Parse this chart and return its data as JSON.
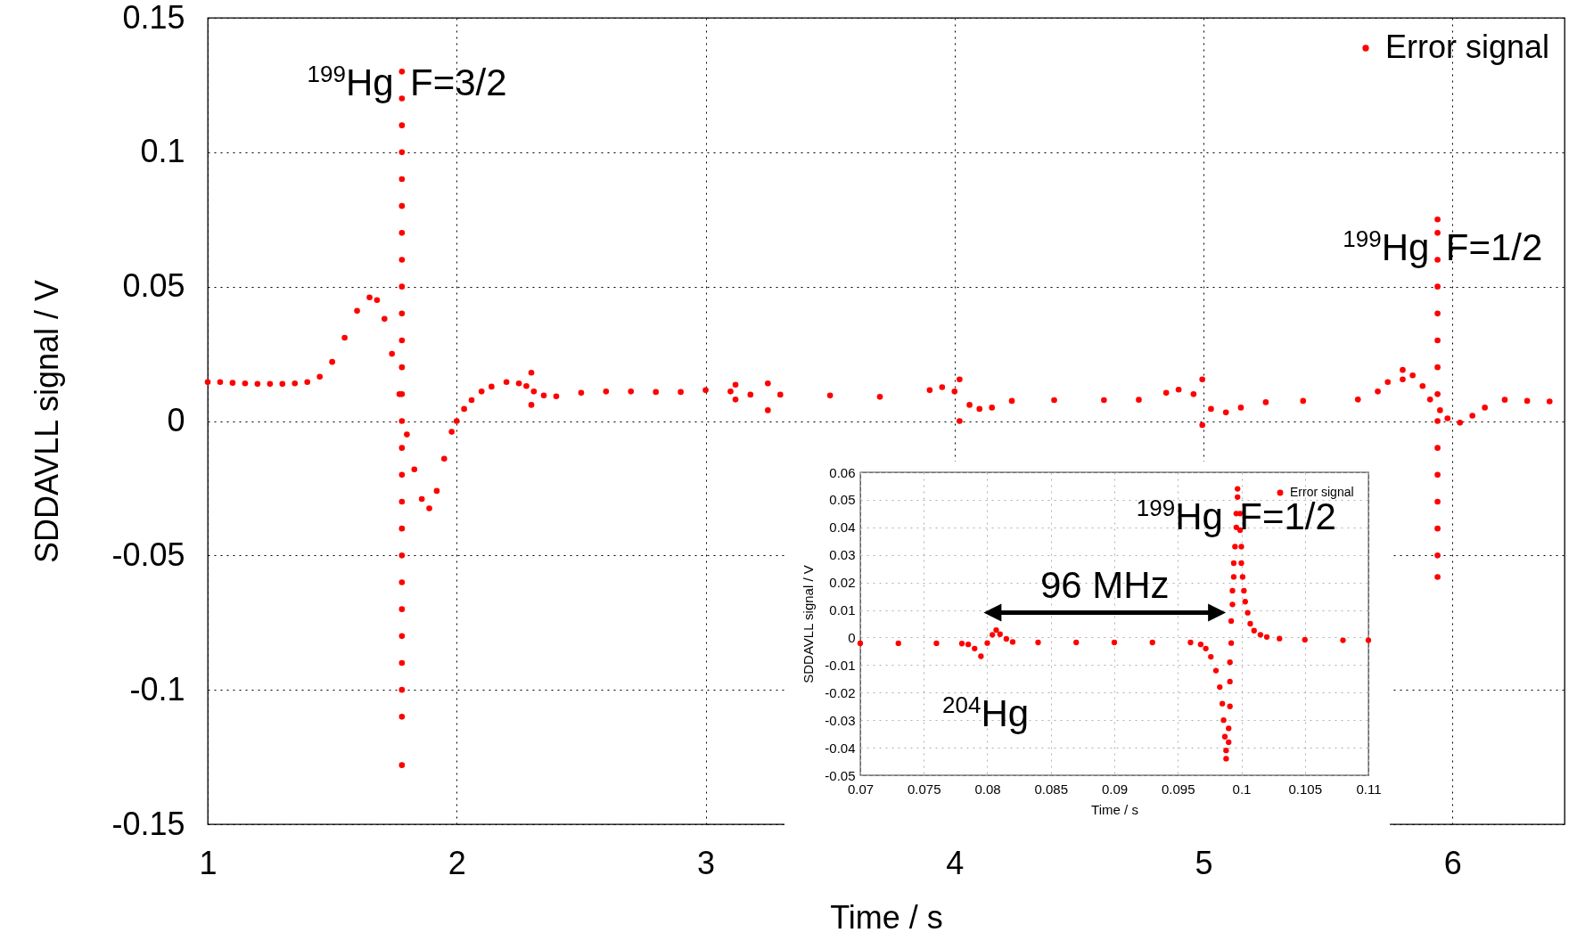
{
  "chart_data": [
    {
      "type": "scatter",
      "xlabel": "Time / s",
      "ylabel": "SDDAVLL signal / V",
      "xlim": [
        1,
        6.45
      ],
      "ylim": [
        -0.15,
        0.15
      ],
      "xticks": [
        1,
        2,
        3,
        4,
        5,
        6
      ],
      "yticks": [
        -0.15,
        -0.1,
        -0.05,
        0,
        0.05,
        0.1,
        0.15
      ],
      "grid": true,
      "legend": "top right",
      "marker": "circle",
      "annotations": [
        {
          "text": "$^{199}$Hg F=3/2",
          "x": 1.78,
          "y": 0.121
        },
        {
          "text": "$^{199}$Hg F=1/2",
          "x": 5.94,
          "y": 0.06
        }
      ],
      "series": [
        {
          "name": "Error signal",
          "color": "#ff0000",
          "x": [
            1.0,
            1.05,
            1.1,
            1.15,
            1.2,
            1.25,
            1.3,
            1.35,
            1.4,
            1.45,
            1.5,
            1.55,
            1.6,
            1.65,
            1.68,
            1.71,
            1.74,
            1.77,
            1.8,
            1.83,
            1.86,
            1.89,
            1.92,
            1.95,
            1.98,
            2.0,
            2.03,
            2.06,
            2.1,
            2.14,
            2.2,
            2.25,
            2.28,
            2.3,
            2.3,
            2.31,
            2.35,
            2.4,
            2.5,
            2.6,
            2.7,
            2.8,
            2.9,
            3.0,
            3.1,
            3.12,
            3.12,
            3.18,
            3.25,
            3.25,
            3.3,
            3.5,
            3.7,
            3.9,
            3.95,
            4.0,
            4.02,
            4.02,
            4.06,
            4.1,
            4.15,
            4.23,
            4.4,
            4.6,
            4.74,
            4.85,
            4.9,
            4.96,
            4.995,
            4.995,
            5.03,
            5.09,
            5.15,
            5.25,
            5.4,
            5.62,
            5.7,
            5.74,
            5.8,
            5.8,
            5.84,
            5.88,
            5.91,
            5.95,
            5.98,
            6.03,
            6.08,
            6.13,
            6.21,
            6.3,
            6.39,
            1.78,
            1.78,
            1.78,
            1.78,
            1.78,
            1.78,
            1.78,
            1.78,
            1.78,
            1.78,
            1.78,
            1.78,
            1.78,
            1.78,
            1.78,
            1.78,
            1.78,
            1.78,
            1.78,
            1.78,
            1.78,
            1.78,
            1.78,
            1.78,
            1.78,
            1.78,
            5.94,
            5.94,
            5.94,
            5.94,
            5.94,
            5.94,
            5.94,
            5.94,
            5.94,
            5.94,
            5.94,
            5.94,
            5.94,
            5.94,
            5.94
          ],
          "values": [
            0.0145,
            0.0145,
            0.0142,
            0.014,
            0.0138,
            0.0138,
            0.0138,
            0.014,
            0.0145,
            0.0165,
            0.022,
            0.031,
            0.041,
            0.046,
            0.045,
            0.038,
            0.025,
            0.01,
            -0.005,
            -0.018,
            -0.029,
            -0.0325,
            -0.026,
            -0.014,
            -0.004,
            0.0,
            0.0045,
            0.0078,
            0.011,
            0.0128,
            0.0145,
            0.014,
            0.013,
            0.018,
            0.006,
            0.011,
            0.0095,
            0.0092,
            0.0105,
            0.011,
            0.011,
            0.0108,
            0.0108,
            0.0115,
            0.011,
            0.0135,
            0.008,
            0.0098,
            0.014,
            0.004,
            0.0098,
            0.0095,
            0.009,
            0.0115,
            0.0126,
            0.011,
            0.0155,
            0.0,
            0.006,
            0.0045,
            0.005,
            0.0075,
            0.0078,
            0.0078,
            0.0079,
            0.0105,
            0.0117,
            0.01,
            0.0155,
            -0.0015,
            0.0045,
            0.0032,
            0.005,
            0.007,
            0.0075,
            0.008,
            0.011,
            0.0145,
            0.019,
            0.0155,
            0.017,
            0.013,
            0.008,
            0.004,
            0.001,
            -0.0006,
            0.002,
            0.005,
            0.0079,
            0.0075,
            0.0073,
            0.13,
            0.12,
            0.11,
            0.1,
            0.09,
            0.08,
            0.07,
            0.06,
            0.05,
            0.04,
            0.03,
            0.02,
            0.01,
            0.0,
            -0.01,
            -0.02,
            -0.03,
            -0.04,
            -0.05,
            -0.06,
            -0.07,
            -0.08,
            -0.09,
            -0.1,
            -0.11,
            -0.128,
            0.075,
            0.07,
            0.06,
            0.05,
            0.04,
            0.03,
            0.02,
            0.01,
            0.0,
            -0.01,
            -0.02,
            -0.03,
            -0.04,
            -0.05,
            -0.058
          ]
        }
      ]
    },
    {
      "type": "scatter",
      "xlabel": "Time / s",
      "ylabel": "SDDAVLL signal / V",
      "xlim": [
        0.07,
        0.11
      ],
      "ylim": [
        -0.05,
        0.06
      ],
      "xticks": [
        0.07,
        0.075,
        0.08,
        0.085,
        0.09,
        0.095,
        0.1,
        0.105,
        0.11
      ],
      "yticks": [
        -0.05,
        -0.04,
        -0.03,
        -0.02,
        -0.01,
        0,
        0.01,
        0.02,
        0.03,
        0.04,
        0.05,
        0.06
      ],
      "grid": true,
      "legend": "top right",
      "marker": "circle",
      "annotations": [
        {
          "text": "$^{199}$Hg F=1/2",
          "x": 0.0992,
          "y": 0.0393
        },
        {
          "text": "$^{204}$Hg",
          "x": 0.0795,
          "y": -0.0068
        },
        "96 MHz"
      ],
      "series": [
        {
          "name": "Error signal",
          "color": "#ff0000",
          "x": [
            0.07,
            0.073,
            0.076,
            0.078,
            0.0785,
            0.079,
            0.0795,
            0.08,
            0.0804,
            0.0807,
            0.081,
            0.0815,
            0.082,
            0.084,
            0.087,
            0.09,
            0.093,
            0.096,
            0.0968,
            0.0972,
            0.0976,
            0.098,
            0.0983,
            0.0985,
            0.0986,
            0.0987,
            0.0988,
            0.0988,
            0.099,
            0.099,
            0.0991,
            0.0991,
            0.0991,
            0.0992,
            0.0992,
            0.0993,
            0.0993,
            0.0994,
            0.0994,
            0.0995,
            0.0996,
            0.0996,
            0.0997,
            0.0997,
            0.0999,
            0.0999,
            0.1,
            0.1,
            0.1001,
            0.1002,
            0.1003,
            0.1005,
            0.1007,
            0.101,
            0.1015,
            0.102,
            0.103,
            0.105,
            0.108,
            0.11
          ],
          "values": [
            -0.0021,
            -0.0021,
            -0.0021,
            -0.0022,
            -0.0025,
            -0.004,
            -0.0068,
            -0.002,
            0.001,
            0.0027,
            0.0012,
            -0.0005,
            -0.0016,
            -0.0018,
            -0.0018,
            -0.0018,
            -0.0018,
            -0.0018,
            -0.0025,
            -0.004,
            -0.007,
            -0.012,
            -0.018,
            -0.024,
            -0.03,
            -0.036,
            -0.041,
            -0.044,
            -0.038,
            -0.033,
            -0.025,
            -0.016,
            -0.009,
            -0.002,
            0.006,
            0.012,
            0.017,
            0.022,
            0.027,
            0.033,
            0.04,
            0.045,
            0.051,
            0.054,
            0.045,
            0.039,
            0.033,
            0.027,
            0.022,
            0.017,
            0.013,
            0.009,
            0.005,
            0.0025,
            0.001,
            0.0002,
            -0.0004,
            -0.0008,
            -0.001,
            -0.001
          ]
        }
      ]
    }
  ]
}
